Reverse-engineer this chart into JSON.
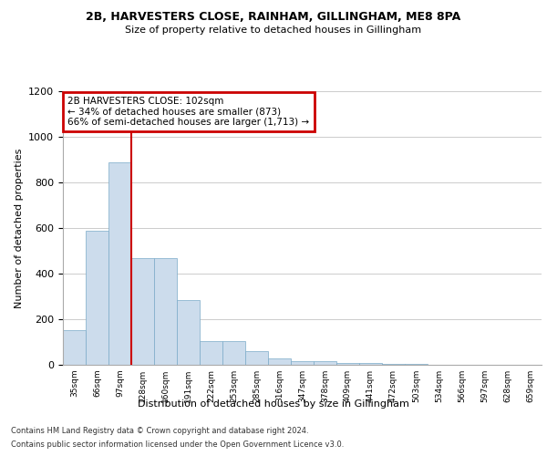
{
  "title1": "2B, HARVESTERS CLOSE, RAINHAM, GILLINGHAM, ME8 8PA",
  "title2": "Size of property relative to detached houses in Gillingham",
  "xlabel": "Distribution of detached houses by size in Gillingham",
  "ylabel": "Number of detached properties",
  "categories": [
    "35sqm",
    "66sqm",
    "97sqm",
    "128sqm",
    "160sqm",
    "191sqm",
    "222sqm",
    "253sqm",
    "285sqm",
    "316sqm",
    "347sqm",
    "378sqm",
    "409sqm",
    "441sqm",
    "472sqm",
    "503sqm",
    "534sqm",
    "566sqm",
    "597sqm",
    "628sqm",
    "659sqm"
  ],
  "values": [
    152,
    590,
    890,
    470,
    470,
    285,
    105,
    105,
    62,
    28,
    18,
    18,
    10,
    10,
    5,
    5,
    0,
    0,
    0,
    0,
    0
  ],
  "bar_color": "#ccdcec",
  "bar_edge_color": "#7aaac8",
  "highlight_line_color": "#cc0000",
  "annotation_text": "2B HARVESTERS CLOSE: 102sqm\n← 34% of detached houses are smaller (873)\n66% of semi-detached houses are larger (1,713) →",
  "annotation_box_facecolor": "#ffffff",
  "annotation_border_color": "#cc0000",
  "property_line_x": 2,
  "ylim": [
    0,
    1200
  ],
  "yticks": [
    0,
    200,
    400,
    600,
    800,
    1000,
    1200
  ],
  "footer1": "Contains HM Land Registry data © Crown copyright and database right 2024.",
  "footer2": "Contains public sector information licensed under the Open Government Licence v3.0.",
  "bg_color": "#ffffff",
  "plot_bg_color": "#ffffff",
  "grid_color": "#cccccc"
}
